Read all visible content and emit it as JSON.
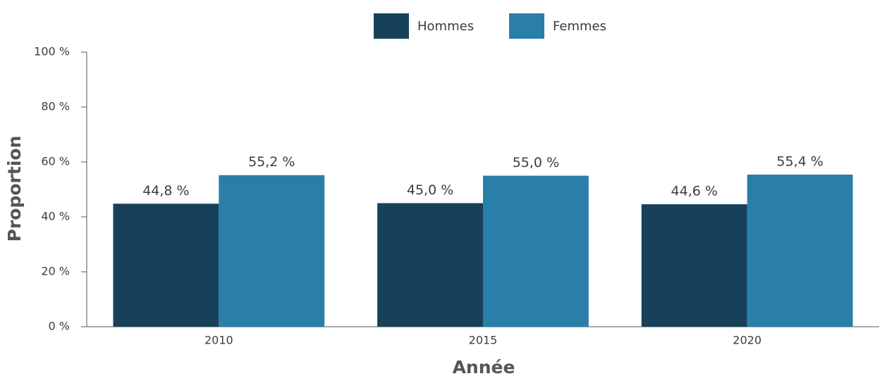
{
  "chart_data": {
    "type": "bar",
    "categories": [
      "2010",
      "2015",
      "2020"
    ],
    "series": [
      {
        "name": "Hommes",
        "color": "#17415a",
        "values": [
          44.8,
          45.0,
          44.6
        ],
        "value_labels": [
          "44,8 %",
          "45,0 %",
          "44,6 %"
        ]
      },
      {
        "name": "Femmes",
        "color": "#2a7fa8",
        "values": [
          55.2,
          55.0,
          55.4
        ],
        "value_labels": [
          "55,2 %",
          "55,0 %",
          "55,4 %"
        ]
      }
    ],
    "xlabel": "Année",
    "ylabel": "Proportion",
    "ylim": [
      0,
      100
    ],
    "yticks": [
      {
        "value": 0,
        "label": "0 %"
      },
      {
        "value": 20,
        "label": "20 %"
      },
      {
        "value": 40,
        "label": "40 %"
      },
      {
        "value": 60,
        "label": "60 %"
      },
      {
        "value": 80,
        "label": "80 %"
      },
      {
        "value": 100,
        "label": "100 %"
      }
    ],
    "grid": false,
    "legend": "top"
  }
}
